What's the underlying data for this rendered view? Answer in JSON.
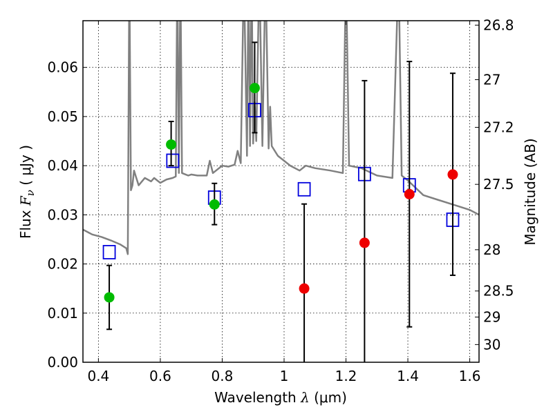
{
  "chart_data": {
    "type": "scatter",
    "xlabel": {
      "prefix": "Wavelength  ",
      "symbol": "λ",
      "units": " (μm)"
    },
    "ylabel": {
      "prefix": "Flux  ",
      "symbol": "F",
      "subscript": "ν",
      "units": "  ( μJy )"
    },
    "y2label": "Magnitude (AB)",
    "xlim": [
      0.35,
      1.63
    ],
    "ylim": [
      0.0,
      0.0695
    ],
    "grid": true,
    "x_ticks": [
      {
        "value": 0.4,
        "label": "0.4"
      },
      {
        "value": 0.6,
        "label": "0.6"
      },
      {
        "value": 0.8,
        "label": "0.8"
      },
      {
        "value": 1.0,
        "label": "1"
      },
      {
        "value": 1.2,
        "label": "1.2"
      },
      {
        "value": 1.4,
        "label": "1.4"
      },
      {
        "value": 1.6,
        "label": "1.6"
      }
    ],
    "y_ticks": [
      {
        "value": 0.0,
        "label": "0.00"
      },
      {
        "value": 0.01,
        "label": "0.01"
      },
      {
        "value": 0.02,
        "label": "0.02"
      },
      {
        "value": 0.03,
        "label": "0.03"
      },
      {
        "value": 0.04,
        "label": "0.04"
      },
      {
        "value": 0.05,
        "label": "0.05"
      },
      {
        "value": 0.06,
        "label": "0.06"
      }
    ],
    "y2_ticks": [
      {
        "flux": 0.0686,
        "label": "26.8"
      },
      {
        "flux": 0.0575,
        "label": "27"
      },
      {
        "flux": 0.0478,
        "label": "27.2"
      },
      {
        "flux": 0.0362,
        "label": "27.5"
      },
      {
        "flux": 0.0229,
        "label": "28"
      },
      {
        "flux": 0.0145,
        "label": "28.5"
      },
      {
        "flux": 0.0092,
        "label": "29"
      },
      {
        "flux": 0.0036,
        "label": "30"
      }
    ],
    "series": [
      {
        "kind": "observed_detection",
        "color": "#00bb00",
        "points": [
          {
            "x": 0.435,
            "y": 0.0132,
            "err_lo": 0.0067,
            "err_hi": 0.0197
          },
          {
            "x": 0.635,
            "y": 0.0443,
            "err_lo": 0.04,
            "err_hi": 0.049
          },
          {
            "x": 0.775,
            "y": 0.0321,
            "err_lo": 0.028,
            "err_hi": 0.0364
          },
          {
            "x": 0.905,
            "y": 0.0558,
            "err_lo": 0.0467,
            "err_hi": 0.0651
          }
        ]
      },
      {
        "kind": "observed_low_significance",
        "color": "#ee0000",
        "points": [
          {
            "x": 1.065,
            "y": 0.015,
            "err_lo": 0.0,
            "err_hi": 0.0322
          },
          {
            "x": 1.26,
            "y": 0.0243,
            "err_lo": 0.0,
            "err_hi": 0.0573
          },
          {
            "x": 1.405,
            "y": 0.0342,
            "err_lo": 0.0072,
            "err_hi": 0.0612
          },
          {
            "x": 1.545,
            "y": 0.0382,
            "err_lo": 0.0177,
            "err_hi": 0.0588
          }
        ]
      },
      {
        "kind": "model_photometry",
        "color": "#0000dd",
        "points": [
          {
            "x": 0.435,
            "y": 0.0224
          },
          {
            "x": 0.64,
            "y": 0.041
          },
          {
            "x": 0.775,
            "y": 0.0335
          },
          {
            "x": 0.905,
            "y": 0.0513
          },
          {
            "x": 1.065,
            "y": 0.0352
          },
          {
            "x": 1.26,
            "y": 0.0383
          },
          {
            "x": 1.405,
            "y": 0.036
          },
          {
            "x": 1.545,
            "y": 0.029
          }
        ]
      }
    ],
    "template_spectrum": {
      "color": "#808080",
      "x": [
        0.35,
        0.38,
        0.41,
        0.44,
        0.47,
        0.49,
        0.495,
        0.5,
        0.505,
        0.51,
        0.515,
        0.52,
        0.53,
        0.55,
        0.57,
        0.58,
        0.59,
        0.6,
        0.62,
        0.64,
        0.65,
        0.655,
        0.66,
        0.665,
        0.67,
        0.69,
        0.7,
        0.72,
        0.75,
        0.76,
        0.77,
        0.78,
        0.8,
        0.82,
        0.84,
        0.85,
        0.86,
        0.87,
        0.88,
        0.885,
        0.89,
        0.895,
        0.9,
        0.905,
        0.91,
        0.92,
        0.93,
        0.94,
        0.95,
        0.955,
        0.96,
        0.98,
        1.0,
        1.02,
        1.05,
        1.07,
        1.1,
        1.15,
        1.19,
        1.2,
        1.21,
        1.25,
        1.3,
        1.35,
        1.37,
        1.38,
        1.4,
        1.45,
        1.5,
        1.55,
        1.6,
        1.63
      ],
      "y": [
        0.027,
        0.026,
        0.0255,
        0.0248,
        0.024,
        0.0232,
        0.022,
        0.08,
        0.035,
        0.036,
        0.039,
        0.038,
        0.036,
        0.0375,
        0.0368,
        0.0375,
        0.037,
        0.0365,
        0.0372,
        0.0375,
        0.0378,
        0.08,
        0.0385,
        0.08,
        0.0385,
        0.038,
        0.0382,
        0.038,
        0.038,
        0.041,
        0.0385,
        0.039,
        0.04,
        0.0398,
        0.0402,
        0.043,
        0.0405,
        0.08,
        0.042,
        0.08,
        0.044,
        0.08,
        0.0445,
        0.053,
        0.045,
        0.08,
        0.044,
        0.08,
        0.0435,
        0.052,
        0.044,
        0.042,
        0.041,
        0.04,
        0.039,
        0.04,
        0.0395,
        0.039,
        0.0385,
        0.08,
        0.04,
        0.0395,
        0.038,
        0.0375,
        0.08,
        0.038,
        0.037,
        0.034,
        0.033,
        0.032,
        0.031,
        0.03
      ]
    }
  }
}
